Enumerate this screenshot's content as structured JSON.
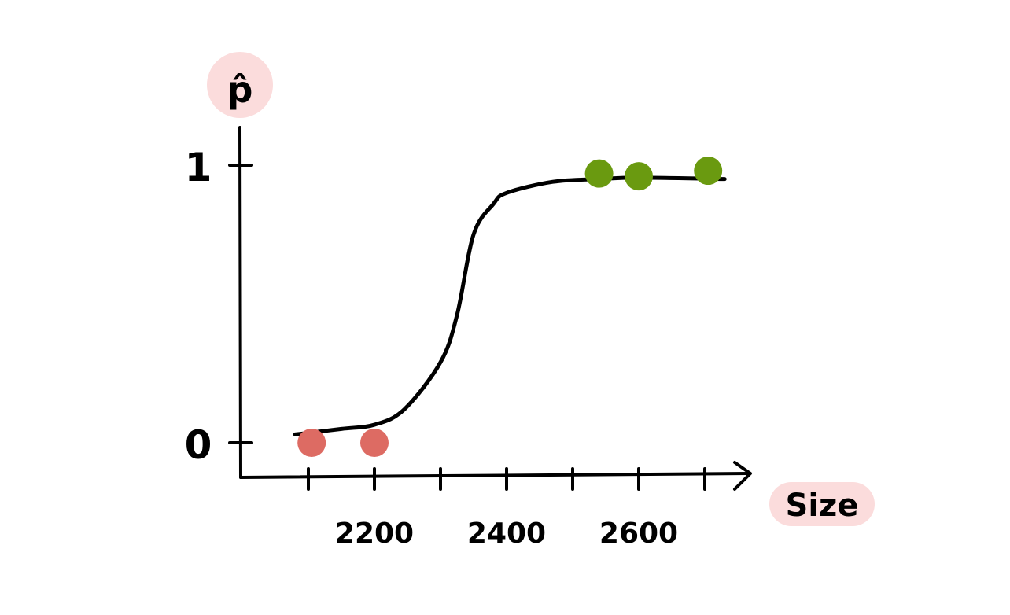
{
  "chart_data": {
    "type": "line",
    "title": "",
    "ylabel": "p̂",
    "xlabel": "Size",
    "xlim": [
      2080,
      2760
    ],
    "ylim": [
      0,
      1
    ],
    "x_ticks": [
      2100,
      2200,
      2300,
      2400,
      2500,
      2600,
      2700
    ],
    "x_tick_labels": [
      {
        "value": 2200,
        "label": "2200"
      },
      {
        "value": 2400,
        "label": "2400"
      },
      {
        "value": 2600,
        "label": "2600"
      }
    ],
    "y_tick_labels": [
      {
        "value": 0,
        "label": "0"
      },
      {
        "value": 1,
        "label": "1"
      }
    ],
    "grid": false,
    "curve": {
      "x": [
        2080,
        2150,
        2200,
        2245,
        2300,
        2325,
        2350,
        2380,
        2400,
        2470,
        2540,
        2600,
        2730
      ],
      "y": [
        0.03,
        0.05,
        0.065,
        0.12,
        0.29,
        0.46,
        0.75,
        0.86,
        0.9,
        0.94,
        0.95,
        0.955,
        0.95
      ],
      "color": "#000000"
    },
    "points": [
      {
        "x": 2105,
        "y": 0,
        "class": "negative",
        "color": "#dd6b63"
      },
      {
        "x": 2200,
        "y": 0,
        "class": "negative",
        "color": "#dd6b63"
      },
      {
        "x": 2540,
        "y": 0.97,
        "class": "positive",
        "color": "#6a9a10"
      },
      {
        "x": 2600,
        "y": 0.96,
        "class": "positive",
        "color": "#6a9a10"
      },
      {
        "x": 2705,
        "y": 0.98,
        "class": "positive",
        "color": "#6a9a10"
      }
    ],
    "label_highlight_color": "#fbdcdc"
  }
}
